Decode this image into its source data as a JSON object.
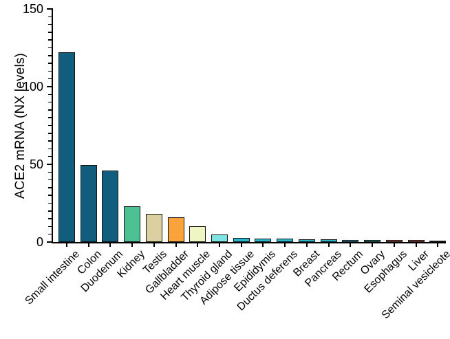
{
  "chart_data": {
    "type": "bar",
    "title": "",
    "ylabel": "ACE2 mRNA (NX levels)",
    "xlabel": "",
    "ylim": [
      0,
      150
    ],
    "yticks_major": [
      0,
      50,
      100,
      150
    ],
    "ytick_minor_step": 5,
    "grid": false,
    "legend": false,
    "categories": [
      "Small intestine",
      "Colon",
      "Duodenum",
      "Kidney",
      "Testis",
      "Gallbladder",
      "Heart muscle",
      "Thyroid gland",
      "Adipose tissue",
      "Epididymis",
      "Ductus deferens",
      "Breast",
      "Pancreas",
      "Rectum",
      "Ovary",
      "Esophagus",
      "Liver",
      "Seminal vesicleote"
    ],
    "values": [
      122,
      49.5,
      46,
      23,
      18,
      16,
      10,
      5,
      2.8,
      2.2,
      2.3,
      1.7,
      1.6,
      1.5,
      1.4,
      1.3,
      1.2,
      1.0
    ],
    "bar_colors": [
      "#115d7d",
      "#115d7d",
      "#115d7d",
      "#4dc094",
      "#dbd1a0",
      "#faa23c",
      "#eff6c4",
      "#7de4e2",
      "#26b6cd",
      "#26b6cd",
      "#26b6cd",
      "#26b6cd",
      "#26b6cd",
      "#26b6cd",
      "#1e9a90",
      "#c7534e",
      "#c7534e",
      "#9e3d3b"
    ],
    "bar_border_color": "#141414",
    "axis_color": "#000000"
  }
}
